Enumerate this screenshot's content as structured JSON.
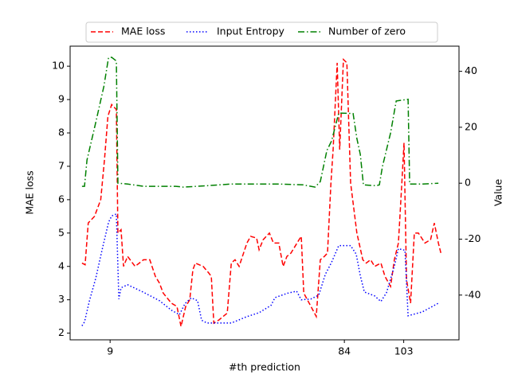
{
  "chart_data": {
    "type": "line",
    "xlabel": "#th prediction",
    "ylabel": "MAE loss",
    "ylabel_color": "#ff0000",
    "y2label": "Value",
    "xlim": [
      -3.8,
      120.7
    ],
    "xticks": [
      9,
      84,
      103
    ],
    "ylim": [
      1.8,
      10.6
    ],
    "yticks": [
      2,
      3,
      4,
      5,
      6,
      7,
      8,
      9,
      10
    ],
    "y2lim": [
      -56,
      49
    ],
    "y2ticks": [
      -40,
      -20,
      0,
      20,
      40
    ],
    "legend": "top",
    "series": [
      {
        "name": "MAE loss",
        "color": "#ff0000",
        "linestyle": "dashed",
        "x": [
          0,
          1,
          2,
          4,
          6,
          7.2,
          8.3,
          9.5,
          11,
          11.5,
          12.5,
          13.3,
          14.6,
          17,
          19.7,
          21.7,
          23.5,
          24.8,
          26,
          28.6,
          30.4,
          31.7,
          33.2,
          34.5,
          35.5,
          36.3,
          38.8,
          40.6,
          41.4,
          42.2,
          43.9,
          46.5,
          47.8,
          49,
          50.3,
          52.8,
          54,
          55.9,
          56.7,
          58,
          60,
          61.3,
          63,
          64.4,
          65.6,
          66.9,
          69.5,
          70.2,
          71,
          73.3,
          75,
          76.3,
          77.6,
          78.6,
          79.7,
          80.4,
          81.7,
          82.5,
          83.7,
          84.8,
          86,
          88,
          89.9,
          91,
          92.4,
          93.7,
          95.7,
          97,
          98.8,
          100,
          101.3,
          102.4,
          103.1,
          103.9,
          105.2,
          106.4,
          107.7,
          109.8,
          111.6,
          112.8,
          114.1,
          114.9
        ],
        "values": [
          4.1,
          4.05,
          5.3,
          5.5,
          6.0,
          7.2,
          8.5,
          8.85,
          8.7,
          5.0,
          5.1,
          4.0,
          4.3,
          4.0,
          4.2,
          4.2,
          3.7,
          3.5,
          3.2,
          2.9,
          2.8,
          2.2,
          2.8,
          3.0,
          3.9,
          4.1,
          4.0,
          3.8,
          3.7,
          2.3,
          2.4,
          2.6,
          4.1,
          4.2,
          4.0,
          4.7,
          4.9,
          4.85,
          4.5,
          4.8,
          5.0,
          4.7,
          4.7,
          4.0,
          4.3,
          4.4,
          4.8,
          4.9,
          3.2,
          2.8,
          2.5,
          4.2,
          4.3,
          4.4,
          6.5,
          7.5,
          10.1,
          7.5,
          10.2,
          10.1,
          6.5,
          5.0,
          4.2,
          4.1,
          4.2,
          4.0,
          4.1,
          3.7,
          3.4,
          4.2,
          4.7,
          6.5,
          7.7,
          3.6,
          2.9,
          5.0,
          5.0,
          4.7,
          4.8,
          5.3,
          4.7,
          4.4
        ]
      },
      {
        "name": "Input Entropy",
        "color": "#0000ff",
        "linestyle": "dotted",
        "axis": "y2",
        "x": [
          0,
          0.8,
          2.4,
          4.4,
          6.4,
          8.5,
          9.5,
          11,
          11.8,
          12.5,
          14.6,
          19.7,
          24.8,
          28.6,
          31.2,
          33,
          35,
          37,
          38.3,
          40,
          47.8,
          52.8,
          56.7,
          60.5,
          61.8,
          65.6,
          68.7,
          70.2,
          73.3,
          75.8,
          77.9,
          79.9,
          82.2,
          86,
          87.8,
          89.1,
          90.4,
          93.7,
          95.7,
          97.5,
          100,
          101.3,
          103.4,
          104.4,
          109,
          114.1
        ],
        "values": [
          -51,
          -49.6,
          -42,
          -34,
          -24,
          -14,
          -11.7,
          -11,
          -41.4,
          -37.4,
          -36.3,
          -39,
          -42,
          -45.4,
          -47,
          -43,
          -41,
          -42,
          -49,
          -50,
          -50,
          -47.7,
          -46.3,
          -43.7,
          -40.9,
          -39.4,
          -38.6,
          -41.7,
          -41.4,
          -40,
          -32.6,
          -28.3,
          -22.3,
          -22.3,
          -25.4,
          -33.1,
          -38.9,
          -40.3,
          -42.3,
          -39.1,
          -29.7,
          -23.4,
          -24,
          -47.4,
          -46,
          -42.9
        ]
      },
      {
        "name": "Number of zero",
        "color": "#008000",
        "linestyle": "dashdot",
        "axis": "y2",
        "x": [
          0,
          0.8,
          1.6,
          4.4,
          7,
          8.5,
          9.5,
          11,
          11.5,
          14.6,
          19.7,
          30,
          32.5,
          40,
          47.8,
          63,
          70.8,
          74.6,
          76.3,
          78.4,
          79.9,
          82.2,
          86.8,
          88,
          89.1,
          90.1,
          94.2,
          95.2,
          96.2,
          98.8,
          100.6,
          104.4,
          104.9,
          109,
          114.1
        ],
        "values": [
          -1.1,
          -1.1,
          8.3,
          21.7,
          34.6,
          44.9,
          45,
          43.7,
          0,
          -0.3,
          -1.1,
          -1.1,
          -1.4,
          -0.9,
          -0.3,
          -0.3,
          -0.6,
          -1.4,
          0.6,
          11.7,
          15.1,
          25.1,
          24.9,
          16,
          10.3,
          -0.6,
          -0.9,
          -0.6,
          6,
          18,
          29.4,
          30,
          -0.3,
          -0.3,
          0
        ]
      }
    ]
  }
}
